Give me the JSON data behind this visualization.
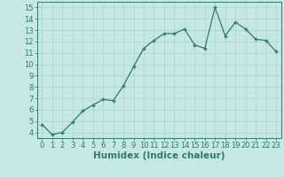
{
  "x": [
    0,
    1,
    2,
    3,
    4,
    5,
    6,
    7,
    8,
    9,
    10,
    11,
    12,
    13,
    14,
    15,
    16,
    17,
    18,
    19,
    20,
    21,
    22,
    23
  ],
  "y": [
    4.7,
    3.8,
    4.0,
    4.9,
    5.9,
    6.4,
    6.9,
    6.8,
    8.1,
    9.8,
    11.4,
    12.1,
    12.7,
    12.7,
    13.1,
    11.7,
    11.4,
    15.0,
    12.5,
    13.7,
    13.1,
    12.2,
    12.1,
    11.1
  ],
  "line_color": "#2d7a6e",
  "marker": "+",
  "marker_size": 3.5,
  "bg_color": "#c5e8e3",
  "grid_color": "#a8d4cd",
  "xlabel": "Humidex (Indice chaleur)",
  "xlim": [
    -0.5,
    23.5
  ],
  "ylim": [
    3.5,
    15.5
  ],
  "xticks": [
    0,
    1,
    2,
    3,
    4,
    5,
    6,
    7,
    8,
    9,
    10,
    11,
    12,
    13,
    14,
    15,
    16,
    17,
    18,
    19,
    20,
    21,
    22,
    23
  ],
  "yticks": [
    4,
    5,
    6,
    7,
    8,
    9,
    10,
    11,
    12,
    13,
    14,
    15
  ],
  "axis_fontsize": 6.5,
  "tick_fontsize": 6.0,
  "xlabel_fontsize": 7.5
}
